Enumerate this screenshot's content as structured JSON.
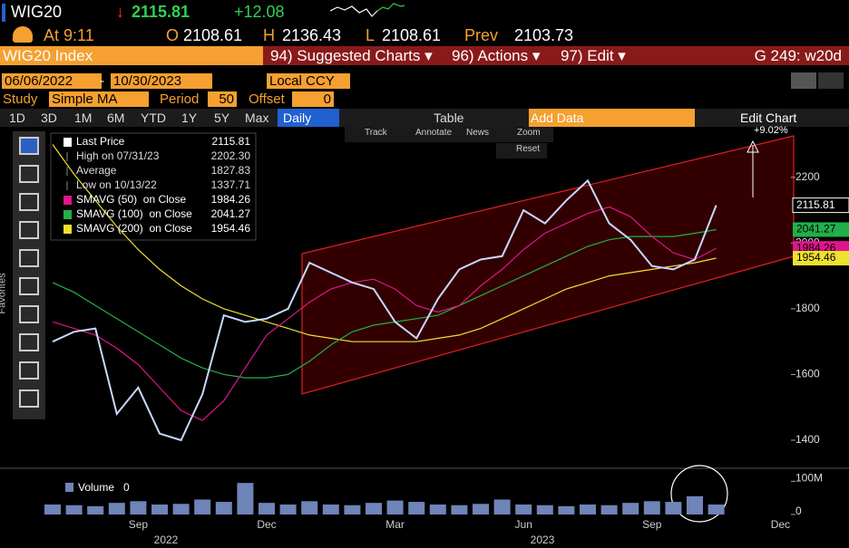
{
  "header": {
    "ticker": "WIG20",
    "arrow": "↓",
    "last": "2115.81",
    "change": "+12.08",
    "time": "At 9:11",
    "open_label": "O",
    "open": "2108.61",
    "high_label": "H",
    "high": "2136.43",
    "low_label": "L",
    "low": "2108.61",
    "prev_label": "Prev",
    "prev": "2103.73"
  },
  "menu": {
    "security": "WIG20 Index",
    "items": [
      "94) Suggested Charts ▾",
      "96) Actions ▾",
      "97) Edit ▾"
    ],
    "page": "G 249: w20d"
  },
  "range": {
    "start": "06/06/2022",
    "end": "10/30/2023",
    "currency": "Local CCY"
  },
  "study": {
    "label": "Study",
    "type": "Simple MA",
    "period_label": "Period",
    "period": "50",
    "offset_label": "Offset",
    "offset": "0"
  },
  "toolbar": {
    "periods": [
      "1D",
      "3D",
      "1M",
      "6M",
      "YTD",
      "1Y",
      "5Y",
      "Max"
    ],
    "frequency": "Daily",
    "table": "Table",
    "add_data": "Add Data",
    "edit": "Edit Chart"
  },
  "tools": [
    "Track",
    "Annotate",
    "News",
    "Zoom",
    "Reset"
  ],
  "sidebar": "Favorites",
  "chart_data": {
    "type": "line",
    "categories": [
      null,
      null,
      null,
      null,
      "Sep",
      null,
      null,
      null,
      null,
      null,
      "Dec",
      null,
      null,
      null,
      null,
      null,
      "Mar",
      null,
      null,
      null,
      null,
      null,
      "Jun",
      null,
      null,
      null,
      null,
      null,
      "Sep",
      null,
      null,
      null,
      null,
      null,
      "Dec",
      null
    ],
    "years": [
      "2022",
      "2023"
    ],
    "series": [
      {
        "name": "Last Price",
        "color": "#c8d8ff",
        "last": "2115.81",
        "values": [
          1700,
          1730,
          1740,
          1480,
          1560,
          1420,
          1400,
          1540,
          1780,
          1760,
          1770,
          1800,
          1940,
          1910,
          1880,
          1860,
          1760,
          1710,
          1830,
          1920,
          1950,
          1960,
          2100,
          2060,
          2130,
          2190,
          2060,
          2010,
          1930,
          1920,
          1950,
          2115,
          null,
          null,
          null,
          null
        ]
      },
      {
        "name": "SMAVG (50)  on Close",
        "color": "#e0158c",
        "last": "1984.26",
        "values": [
          1760,
          1740,
          1720,
          1680,
          1630,
          1560,
          1490,
          1460,
          1520,
          1620,
          1720,
          1770,
          1820,
          1860,
          1880,
          1890,
          1860,
          1810,
          1790,
          1810,
          1870,
          1920,
          1980,
          2030,
          2060,
          2090,
          2110,
          2080,
          2020,
          1970,
          1950,
          1984,
          null,
          null,
          null,
          null
        ]
      },
      {
        "name": "SMAVG (100)  on Close",
        "color": "#22b04a",
        "last": "2041.27",
        "values": [
          1880,
          1850,
          1810,
          1770,
          1730,
          1690,
          1650,
          1620,
          1600,
          1590,
          1590,
          1600,
          1640,
          1690,
          1730,
          1750,
          1760,
          1770,
          1780,
          1810,
          1840,
          1870,
          1900,
          1930,
          1960,
          1990,
          2010,
          2020,
          2020,
          2020,
          2030,
          2041,
          null,
          null,
          null,
          null
        ]
      },
      {
        "name": "SMAVG (200)  on Close",
        "color": "#f0e030",
        "last": "1954.46",
        "values": [
          2300,
          2210,
          2130,
          2050,
          1980,
          1920,
          1870,
          1830,
          1800,
          1780,
          1760,
          1740,
          1720,
          1710,
          1700,
          1700,
          1700,
          1700,
          1710,
          1720,
          1740,
          1770,
          1800,
          1830,
          1860,
          1880,
          1900,
          1910,
          1920,
          1930,
          1940,
          1954,
          null,
          null,
          null,
          null
        ]
      }
    ],
    "stats": [
      {
        "label": "High on 07/31/23",
        "value": "2202.30"
      },
      {
        "label": "Average",
        "value": "1827.83"
      },
      {
        "label": "Low on 10/13/22",
        "value": "1337.71"
      }
    ],
    "ylim": [
      1320,
      2340
    ],
    "yticks": [
      1400,
      1600,
      1800,
      2000,
      2200
    ],
    "grid": false,
    "annotation": "+9.02%",
    "volume": {
      "name": "Volume",
      "last": "0",
      "color": "#6f84b8",
      "values": [
        30000000,
        28000000,
        25000000,
        35000000,
        40000000,
        30000000,
        32000000,
        45000000,
        38000000,
        95000000,
        35000000,
        30000000,
        40000000,
        30000000,
        28000000,
        35000000,
        42000000,
        38000000,
        30000000,
        28000000,
        32000000,
        45000000,
        30000000,
        28000000,
        25000000,
        30000000,
        28000000,
        35000000,
        40000000,
        38000000,
        55000000,
        30000000,
        null,
        null,
        null,
        null
      ],
      "ylim": [
        0,
        120000000
      ],
      "yticks": [
        0,
        {
          "value": 100000000,
          "label": "100M"
        }
      ]
    }
  }
}
